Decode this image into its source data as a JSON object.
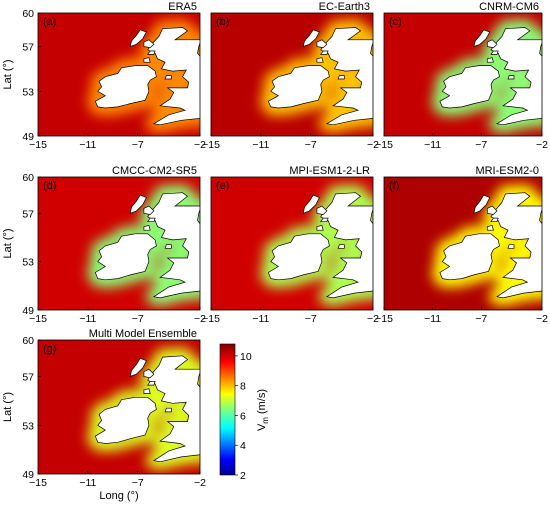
{
  "chart_data": [
    {
      "type": "heatmap",
      "panel_label": "(a)",
      "title": "ERA5",
      "xlabel": "",
      "ylabel": "Lat (°)",
      "x_ticks": [
        "−15",
        "−11",
        "−7",
        "−2"
      ],
      "y_ticks": [
        "60",
        "57",
        "53",
        "49"
      ],
      "xlim": [
        -15,
        -2
      ],
      "ylim": [
        49,
        60
      ],
      "open_sea_vm": 10.2,
      "coastal_vm": 8.5
    },
    {
      "type": "heatmap",
      "panel_label": "(b)",
      "title": "EC-Earth3",
      "xlabel": "",
      "ylabel": "",
      "x_ticks": [
        "−15",
        "−11",
        "−7",
        "−2"
      ],
      "y_ticks": [],
      "xlim": [
        -15,
        -2
      ],
      "ylim": [
        49,
        60
      ],
      "open_sea_vm": 10.3,
      "coastal_vm": 8.0
    },
    {
      "type": "heatmap",
      "panel_label": "(c)",
      "title": "CNRM-CM6",
      "xlabel": "",
      "ylabel": "",
      "x_ticks": [
        "−15",
        "−11",
        "−7",
        "−2"
      ],
      "y_ticks": [],
      "xlim": [
        -15,
        -2
      ],
      "ylim": [
        49,
        60
      ],
      "open_sea_vm": 10.2,
      "coastal_vm": 6.5
    },
    {
      "type": "heatmap",
      "panel_label": "(d)",
      "title": "CMCC-CM2-SR5",
      "xlabel": "",
      "ylabel": "Lat (°)",
      "x_ticks": [
        "−15",
        "−11",
        "−7",
        "−2"
      ],
      "y_ticks": [
        "60",
        "57",
        "53",
        "49"
      ],
      "xlim": [
        -15,
        -2
      ],
      "ylim": [
        49,
        60
      ],
      "open_sea_vm": 10.1,
      "coastal_vm": 6.5
    },
    {
      "type": "heatmap",
      "panel_label": "(e)",
      "title": "MPI-ESM1-2-LR",
      "xlabel": "",
      "ylabel": "",
      "x_ticks": [
        "−15",
        "−11",
        "−7",
        "−2"
      ],
      "y_ticks": [],
      "xlim": [
        -15,
        -2
      ],
      "ylim": [
        49,
        60
      ],
      "open_sea_vm": 10.1,
      "coastal_vm": 6.8
    },
    {
      "type": "heatmap",
      "panel_label": "(f)",
      "title": "MRI-ESM2-0",
      "xlabel": "",
      "ylabel": "",
      "x_ticks": [
        "−15",
        "−11",
        "−7",
        "−2"
      ],
      "y_ticks": [],
      "xlim": [
        -15,
        -2
      ],
      "ylim": [
        49,
        60
      ],
      "open_sea_vm": 10.4,
      "coastal_vm": 7.5
    },
    {
      "type": "heatmap",
      "panel_label": "(g)",
      "title": "Multi Model Ensemble",
      "xlabel": "Long (°)",
      "ylabel": "Lat (°)",
      "x_ticks": [
        "−15",
        "−11",
        "−7",
        "−2"
      ],
      "y_ticks": [
        "60",
        "57",
        "53",
        "49"
      ],
      "xlim": [
        -15,
        -2
      ],
      "ylim": [
        49,
        60
      ],
      "open_sea_vm": 10.2,
      "coastal_vm": 7.2
    }
  ],
  "colorbar": {
    "label": "V",
    "label_sub": "m",
    "label_unit": "(m/s)",
    "ticks": [
      "10",
      "8",
      "6",
      "4",
      "2"
    ],
    "tick_values": [
      10,
      8,
      6,
      4,
      2
    ],
    "range": [
      2,
      10.8
    ],
    "colormap": "jet"
  },
  "colors": {
    "land": "#ffffff",
    "coastline": "#000000",
    "frame": "#000000"
  }
}
